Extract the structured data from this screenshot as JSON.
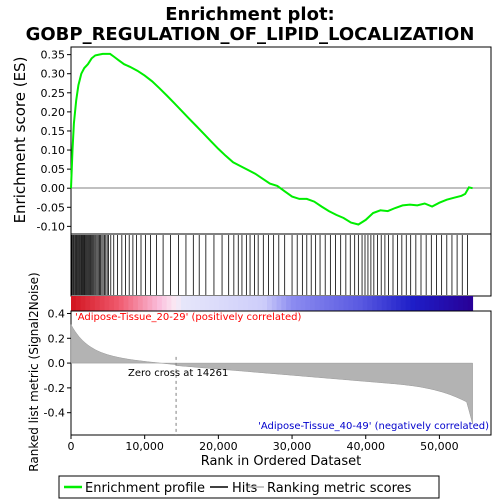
{
  "chart_data": {
    "type": "line",
    "title_line1": "Enrichment plot:",
    "title_line2": "GOBP_REGULATION_OF_LIPID_LOCALIZATION",
    "xlabel": "Rank in Ordered Dataset",
    "ylabel_top": "Enrichment score (ES)",
    "ylabel_bottom": "Ranked list metric (Signal2Noise)",
    "xlim": [
      0,
      57000
    ],
    "x_ticks": [
      0,
      10000,
      20000,
      30000,
      40000,
      50000
    ],
    "x_tick_labels": [
      "0",
      "10,000",
      "20,000",
      "30,000",
      "40,000",
      "50,000"
    ],
    "es_ylim": [
      -0.12,
      0.37
    ],
    "es_ticks": [
      -0.1,
      -0.05,
      0.0,
      0.05,
      0.1,
      0.15,
      0.2,
      0.25,
      0.3,
      0.35
    ],
    "es_tick_labels": [
      "-0.10",
      "-0.05",
      "0.00",
      "0.05",
      "0.10",
      "0.15",
      "0.20",
      "0.25",
      "0.30",
      "0.35"
    ],
    "metric_ylim": [
      -0.58,
      0.42
    ],
    "metric_ticks": [
      -0.4,
      -0.2,
      0.0,
      0.2,
      0.4
    ],
    "metric_tick_labels": [
      "-0.4",
      "-0.2",
      "0.0",
      "0.2",
      "0.4"
    ],
    "n_genes": 54500,
    "zero_cross_rank": 14261,
    "zero_cross_label": "Zero cross at 14261",
    "pos_label": "'Adipose-Tissue_20-29' (positively correlated)",
    "neg_label": "'Adipose-Tissue_40-49' (negatively correlated)",
    "legend": [
      "Enrichment profile",
      "Hits",
      "Ranking metric scores"
    ],
    "colors": {
      "enrichment": "#00ee00",
      "hits": "#000000",
      "metric_fill": "#b3b3b3",
      "pos_text": "#ff0000",
      "neg_text": "#0000cc",
      "zero_line": "#808080"
    },
    "series": [
      {
        "name": "Enrichment profile",
        "x": [
          0,
          200,
          400,
          700,
          1000,
          1400,
          1800,
          2300,
          2800,
          3300,
          3800,
          4300,
          4800,
          5300,
          5800,
          6500,
          7200,
          8000,
          9000,
          10000,
          11000,
          12000,
          13000,
          14000,
          15000,
          16000,
          17000,
          18000,
          19000,
          20000,
          21000,
          22000,
          23000,
          24000,
          25000,
          26000,
          27000,
          28000,
          29000,
          30000,
          31000,
          32000,
          33000,
          34000,
          35000,
          36000,
          37000,
          38000,
          39000,
          40000,
          41000,
          42000,
          43000,
          44000,
          45000,
          46000,
          47000,
          48000,
          49000,
          50000,
          51000,
          52000,
          53000,
          53500,
          54000,
          54500
        ],
        "y": [
          0.0,
          0.1,
          0.17,
          0.23,
          0.27,
          0.3,
          0.315,
          0.325,
          0.34,
          0.348,
          0.35,
          0.352,
          0.352,
          0.352,
          0.345,
          0.335,
          0.325,
          0.318,
          0.308,
          0.295,
          0.28,
          0.262,
          0.243,
          0.223,
          0.203,
          0.183,
          0.163,
          0.143,
          0.123,
          0.103,
          0.085,
          0.068,
          0.058,
          0.048,
          0.038,
          0.025,
          0.012,
          0.006,
          -0.008,
          -0.022,
          -0.028,
          -0.028,
          -0.035,
          -0.048,
          -0.06,
          -0.07,
          -0.078,
          -0.09,
          -0.095,
          -0.083,
          -0.065,
          -0.058,
          -0.06,
          -0.052,
          -0.045,
          -0.043,
          -0.045,
          -0.04,
          -0.048,
          -0.038,
          -0.03,
          -0.025,
          -0.02,
          -0.015,
          0.002,
          0.0
        ]
      }
    ],
    "hit_ranks": [
      120,
      260,
      380,
      520,
      640,
      760,
      880,
      1000,
      1130,
      1250,
      1380,
      1500,
      1630,
      1760,
      1880,
      2010,
      2140,
      2270,
      2400,
      2530,
      2660,
      2800,
      2940,
      3080,
      3230,
      3380,
      3540,
      3700,
      3860,
      4020,
      4190,
      4360,
      4540,
      4720,
      4910,
      5100,
      5400,
      5800,
      6300,
      6900,
      7400,
      7900,
      8400,
      8900,
      9500,
      10100,
      10800,
      11600,
      12500,
      13500,
      14600,
      15600,
      16600,
      17400,
      18300,
      19400,
      20500,
      21400,
      22100,
      22700,
      23200,
      23800,
      24300,
      24900,
      25400,
      26100,
      26800,
      27500,
      28200,
      29000,
      30000,
      30700,
      31400,
      32000,
      32600,
      33200,
      33800,
      34500,
      35200,
      35900,
      36600,
      37300,
      37900,
      38500,
      39000,
      39500,
      39900,
      40300,
      40700,
      41100,
      41600,
      42100,
      42600,
      43100,
      43700,
      44300,
      44900,
      45500,
      46100,
      46800,
      47500,
      48200,
      48900,
      49600,
      50300,
      51000,
      51700,
      52400,
      53100,
      53800
    ]
  }
}
